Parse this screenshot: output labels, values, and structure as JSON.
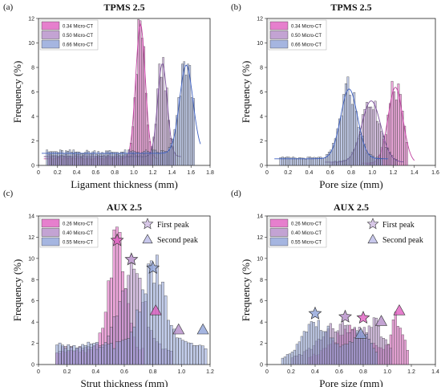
{
  "colors": {
    "pink": "#e05fc0",
    "purple": "#b48cc8",
    "blue": "#8fa3d8",
    "fit_pink": "#c040a0",
    "fit_purple": "#7a4f9a",
    "fit_blue": "#3c5fc0"
  },
  "chart_data": [
    {
      "panel": "(a)",
      "title": "TPMS 2.5",
      "type": "bar",
      "xlabel": "Ligament thickness (mm)",
      "ylabel": "Frequency (%)",
      "xlim": [
        0,
        1.8
      ],
      "ylim": [
        0,
        12
      ],
      "xticks": [
        "0",
        "0.2",
        "0.4",
        "0.6",
        "0.8",
        "1.0",
        "1.2",
        "1.4",
        "1.6",
        "1.8"
      ],
      "yticks": [
        "0",
        "2",
        "4",
        "6",
        "8",
        "10",
        "12"
      ],
      "legend_position": "top-left",
      "legend": [
        "0.34  Micro-CT",
        "0.50  Micro-CT",
        "0.66  Micro-CT"
      ],
      "series": [
        {
          "name": "0.34  Micro-CT",
          "color": "pink",
          "peaks": [
            [
              1.07,
              11.0,
              0.05
            ]
          ],
          "base": 0.6,
          "range": [
            0.1,
            1.2
          ],
          "fit": true
        },
        {
          "name": "0.50  Micro-CT",
          "color": "purple",
          "peaks": [
            [
              1.3,
              7.6,
              0.05
            ]
          ],
          "base": 0.8,
          "range": [
            0.1,
            1.45
          ],
          "fit": true
        },
        {
          "name": "0.66  Micro-CT",
          "color": "blue",
          "peaks": [
            [
              1.55,
              7.2,
              0.07
            ]
          ],
          "base": 1.1,
          "range": [
            0.08,
            1.65
          ],
          "fit": true
        }
      ],
      "markers": []
    },
    {
      "panel": "(b)",
      "title": "TPMS 2.5",
      "type": "bar",
      "xlabel": "Pore size (mm)",
      "ylabel": "Frequency (%)",
      "xlim": [
        0,
        1.6
      ],
      "ylim": [
        0,
        12
      ],
      "xticks": [
        "0",
        "0.2",
        "0.4",
        "0.6",
        "0.8",
        "1.0",
        "1.2",
        "1.4",
        "1.6"
      ],
      "yticks": [
        "0",
        "2",
        "4",
        "6",
        "8",
        "10",
        "12"
      ],
      "legend_position": "top-left",
      "legend": [
        "0.34  Micro-CT",
        "0.50  Micro-CT",
        "0.66  Micro-CT"
      ],
      "series": [
        {
          "name": "0.34  Micro-CT",
          "color": "pink",
          "peaks": [
            [
              1.22,
              6.2,
              0.07
            ]
          ],
          "base": 0.2,
          "range": [
            0.95,
            1.35
          ],
          "fit": true
        },
        {
          "name": "0.50  Micro-CT",
          "color": "purple",
          "peaks": [
            [
              0.99,
              5.0,
              0.09
            ]
          ],
          "base": 0.3,
          "range": [
            0.6,
            1.25
          ],
          "fit": true
        },
        {
          "name": "0.66  Micro-CT",
          "color": "blue",
          "peaks": [
            [
              0.78,
              5.7,
              0.08
            ]
          ],
          "base": 0.6,
          "range": [
            0.12,
            1.1
          ],
          "fit": true
        }
      ],
      "markers": []
    },
    {
      "panel": "(c)",
      "title": "AUX 2.5",
      "type": "bar",
      "xlabel": "Strut thickness (mm)",
      "ylabel": "Frequency (%)",
      "xlim": [
        0,
        1.2
      ],
      "ylim": [
        0,
        14
      ],
      "xticks": [
        "0",
        "0.2",
        "0.4",
        "0.6",
        "0.8",
        "1.0",
        "1.2"
      ],
      "yticks": [
        "0",
        "2",
        "4",
        "6",
        "8",
        "10",
        "12",
        "14"
      ],
      "legend_position": "top-left",
      "legend": [
        "0.26  Micro-CT",
        "0.40  Micro-CT",
        "0.55  Micro-CT"
      ],
      "annotations": [
        "First peak",
        "Second peak"
      ],
      "series": [
        {
          "name": "0.26  Micro-CT",
          "color": "pink",
          "peaks": [
            [
              0.55,
              10.5,
              0.06
            ]
          ],
          "base": 1.2,
          "range": [
            0.12,
            0.75
          ],
          "fit": false
        },
        {
          "name": "0.40  Micro-CT",
          "color": "purple",
          "peaks": [
            [
              0.65,
              8.0,
              0.08
            ]
          ],
          "base": 1.5,
          "range": [
            0.15,
            0.95
          ],
          "fit": false
        },
        {
          "name": "0.55  Micro-CT",
          "color": "blue",
          "peaks": [
            [
              0.8,
              7.5,
              0.08
            ]
          ],
          "base": 1.8,
          "range": [
            0.12,
            1.18
          ],
          "fit": false
        }
      ],
      "markers": [
        {
          "shape": "star",
          "x": 0.55,
          "y": 11.7,
          "color": "pink"
        },
        {
          "shape": "star",
          "x": 0.65,
          "y": 9.9,
          "color": "purple"
        },
        {
          "shape": "star",
          "x": 0.8,
          "y": 9.1,
          "color": "blue"
        },
        {
          "shape": "triangle",
          "x": 0.82,
          "y": 5.1,
          "color": "pink"
        },
        {
          "shape": "triangle",
          "x": 0.98,
          "y": 3.3,
          "color": "purple"
        },
        {
          "shape": "triangle",
          "x": 1.15,
          "y": 3.3,
          "color": "blue"
        }
      ]
    },
    {
      "panel": "(d)",
      "title": "AUX 2.5",
      "type": "bar",
      "xlabel": "Pore size (mm)",
      "ylabel": "Frequency (%)",
      "xlim": [
        0,
        1.4
      ],
      "ylim": [
        0,
        14
      ],
      "xticks": [
        "0",
        "0.2",
        "0.4",
        "0.6",
        "0.8",
        "1.0",
        "1.2",
        "1.4"
      ],
      "yticks": [
        "0",
        "2",
        "4",
        "6",
        "8",
        "10",
        "12",
        "14"
      ],
      "legend_position": "top-left",
      "legend": [
        "0.26  Micro-CT",
        "0.40  Micro-CT",
        "0.55  Micro-CT"
      ],
      "annotations": [
        "First peak",
        "Second peak"
      ],
      "series": [
        {
          "name": "0.26  Micro-CT",
          "color": "pink",
          "peaks": [
            [
              0.7,
              2.6,
              0.15
            ],
            [
              1.08,
              3.6,
              0.05
            ]
          ],
          "base": 0.6,
          "range": [
            0.35,
            1.18
          ],
          "fit": false
        },
        {
          "name": "0.40  Micro-CT",
          "color": "purple",
          "peaks": [
            [
              0.6,
              3.1,
              0.16
            ],
            [
              0.9,
              2.8,
              0.08
            ]
          ],
          "base": 0.5,
          "range": [
            0.2,
            1.05
          ],
          "fit": false
        },
        {
          "name": "0.55  Micro-CT",
          "color": "blue",
          "peaks": [
            [
              0.42,
              3.6,
              0.12
            ],
            [
              0.78,
              2.5,
              0.08
            ]
          ],
          "base": 0.4,
          "range": [
            0.12,
            0.92
          ],
          "fit": false
        }
      ],
      "markers": [
        {
          "shape": "star",
          "x": 0.4,
          "y": 4.8,
          "color": "blue"
        },
        {
          "shape": "star",
          "x": 0.65,
          "y": 4.5,
          "color": "purple"
        },
        {
          "shape": "star",
          "x": 0.8,
          "y": 4.4,
          "color": "pink"
        },
        {
          "shape": "triangle",
          "x": 0.78,
          "y": 2.9,
          "color": "blue"
        },
        {
          "shape": "triangle",
          "x": 0.95,
          "y": 4.1,
          "color": "purple"
        },
        {
          "shape": "triangle",
          "x": 1.1,
          "y": 5.1,
          "color": "pink"
        }
      ]
    }
  ]
}
